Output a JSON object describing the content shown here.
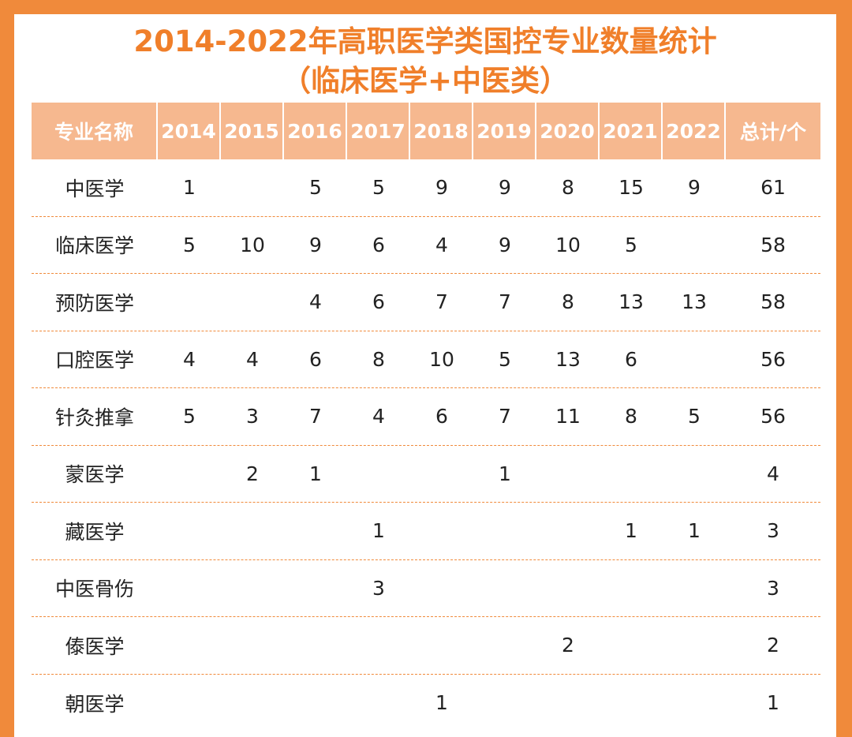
{
  "title_line1": "2014-2022年高职医学类国控专业数量统计",
  "title_line2": "（临床医学+中医类）",
  "colors": {
    "border": "#f08a3b",
    "title": "#f07f2a",
    "header_bg": "#f6b88f",
    "header_text": "#ffffff"
  },
  "table": {
    "headers": [
      "专业名称",
      "2014",
      "2015",
      "2016",
      "2017",
      "2018",
      "2019",
      "2020",
      "2021",
      "2022",
      "总计/个"
    ],
    "rows": [
      [
        "中医学",
        "1",
        "",
        "5",
        "5",
        "9",
        "9",
        "8",
        "15",
        "9",
        "61"
      ],
      [
        "临床医学",
        "5",
        "10",
        "9",
        "6",
        "4",
        "9",
        "10",
        "5",
        "",
        "58"
      ],
      [
        "预防医学",
        "",
        "",
        "4",
        "6",
        "7",
        "7",
        "8",
        "13",
        "13",
        "58"
      ],
      [
        "口腔医学",
        "4",
        "4",
        "6",
        "8",
        "10",
        "5",
        "13",
        "6",
        "",
        "56"
      ],
      [
        "针灸推拿",
        "5",
        "3",
        "7",
        "4",
        "6",
        "7",
        "11",
        "8",
        "5",
        "56"
      ],
      [
        "蒙医学",
        "",
        "2",
        "1",
        "",
        "",
        "1",
        "",
        "",
        "",
        "4"
      ],
      [
        "藏医学",
        "",
        "",
        "",
        "1",
        "",
        "",
        "",
        "1",
        "1",
        "3"
      ],
      [
        "中医骨伤",
        "",
        "",
        "",
        "3",
        "",
        "",
        "",
        "",
        "",
        "3"
      ],
      [
        "傣医学",
        "",
        "",
        "",
        "",
        "",
        "",
        "2",
        "",
        "",
        "2"
      ],
      [
        "朝医学",
        "",
        "",
        "",
        "",
        "1",
        "",
        "",
        "",
        "",
        "1"
      ]
    ]
  }
}
